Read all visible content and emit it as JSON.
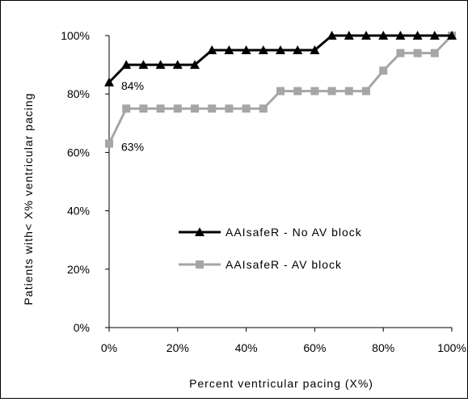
{
  "chart_data": {
    "type": "line",
    "title": "",
    "xlabel": "Percent ventricular pacing (X%)",
    "ylabel": "Patients with< X% ventricular pacing",
    "xlim": [
      0,
      100
    ],
    "ylim": [
      0,
      100
    ],
    "x_ticks": [
      "0%",
      "20%",
      "40%",
      "60%",
      "80%",
      "100%"
    ],
    "y_ticks": [
      "0%",
      "20%",
      "40%",
      "60%",
      "80%",
      "100%"
    ],
    "grid": false,
    "legend_position": "center",
    "x": [
      0,
      5,
      10,
      15,
      20,
      25,
      30,
      35,
      40,
      45,
      50,
      55,
      60,
      65,
      70,
      75,
      80,
      85,
      90,
      95,
      100
    ],
    "series": [
      {
        "name": "AAIsafeR - No AV block",
        "color": "#000000",
        "marker": "triangle",
        "values": [
          84,
          90,
          90,
          90,
          90,
          90,
          95,
          95,
          95,
          95,
          95,
          95,
          95,
          100,
          100,
          100,
          100,
          100,
          100,
          100,
          100
        ]
      },
      {
        "name": "AAIsafeR - AV block",
        "color": "#a6a6a6",
        "marker": "square",
        "values": [
          63,
          75,
          75,
          75,
          75,
          75,
          75,
          75,
          75,
          75,
          81,
          81,
          81,
          81,
          81,
          81,
          88,
          94,
          94,
          94,
          100
        ]
      }
    ],
    "annotations": [
      {
        "text": "84%",
        "x": 0,
        "y": 84
      },
      {
        "text": "63%",
        "x": 0,
        "y": 63
      }
    ]
  }
}
